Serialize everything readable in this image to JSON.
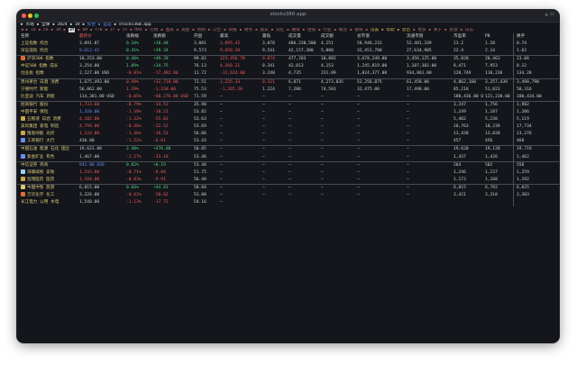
{
  "window": {
    "title": "stocks360.app",
    "right_label": "▲ 30"
  },
  "terminal": {
    "line1_prompt": "▶ 市场 ▪ 全球 ▪ 2024 ▪ 1H ▪",
    "line1_accent": "综合 ▪ 自选",
    "line1_rest": "▪ stocks360.app",
    "line2_pre": "◀ ▶ 1D ▪ 5D ▪ 1M ▪",
    "line2_highlight": "3M",
    "line2_mid": "▪ 6M ▪ YTD ▪ 1Y ▪ 5Y ▪ MAX ▪ 行情 ▪ 图表 ▪ 资金 ▪ 新闻 ▪ 公告 ▪ 研报 ▪ 财务 ▪ 股东 ▪ 分红 ▪ 融资 ▪ 估值 ▪ 行业 ▪ 概念 ▪ 板块 ▪",
    "line2_y": "设置 ▪ 帮助 ▪ 退出",
    "line2_tail": "▪ 更多 ▪ 关于 ▪ 反馈 ▪ 日志"
  },
  "table": {
    "headers": [
      "名称",
      "最新价",
      "涨跌幅",
      "涨跌额",
      "开盘",
      "最高",
      "最低",
      "成交量",
      "成交额",
      "总市值",
      "流通市值",
      "市盈率",
      "PB",
      "换手"
    ],
    "rows": [
      {
        "name": "上证指数 综合",
        "c": [
          "3,091.87",
          "0.34%",
          "+10.48",
          "3,081",
          "3,095.42",
          "3,078",
          "486,230,500",
          "4,251",
          "58,946,231",
          "52,481,339",
          "13.2",
          "1.28",
          "0.74"
        ],
        "cls": [
          "",
          "up",
          "up",
          "",
          "down",
          "",
          "",
          "",
          "",
          "",
          "",
          "",
          ""
        ],
        "icon": "",
        "sep": false
      },
      {
        "name": "深证成指 综合",
        "c": [
          "9,612.43",
          "0.41%",
          "+39.34",
          "9,573",
          "9,658.20",
          "9,541",
          "42,157,300",
          "5,008",
          "32,451,780",
          "27,634,905",
          "22.4",
          "2.14",
          "1.62"
        ],
        "cls": [
          "blue",
          "up",
          "up",
          "",
          "down",
          "",
          "",
          "",
          "",
          "",
          "",
          "",
          ""
        ],
        "icon": "",
        "sep": false
      },
      {
        "name": "沪深300 指数",
        "c": [
          "10,253.00",
          "0.46%",
          "+49.28",
          "99.82",
          "123,456.78",
          "9.874",
          "477,283",
          "10,892",
          "3,678,249.00",
          "3,456,125.00",
          "35,820",
          "20,463",
          "23.06"
        ],
        "cls": [
          "",
          "up",
          "up",
          "",
          "down",
          "down",
          "",
          "",
          "",
          "",
          "",
          "",
          ""
        ],
        "icon": "#e06c3a",
        "sep": true
      },
      {
        "name": "中证500 指数 成长",
        "c": [
          "3,254.00",
          "1.09%",
          "+34.75",
          "76.13",
          "4,566.21",
          "0.341",
          "42,013",
          "4,153",
          "1,245,819.00",
          "1,187,302.00",
          "8,471",
          "7,953",
          "8.12"
        ],
        "cls": [
          "",
          "up",
          "up",
          "",
          "down",
          "",
          "",
          "",
          "",
          "",
          "",
          "",
          ""
        ],
        "icon": "",
        "sep": false
      },
      {
        "name": "创业板 指数",
        "c": [
          "2,127.00 USD",
          "-0.81%",
          "-17,482.00",
          "11.72",
          "-11,624.00",
          "3.248",
          "4,735",
          "231.09",
          "1,024,377.00",
          "934,861.00",
          "128,749",
          "118,236",
          "134.28"
        ],
        "cls": [
          "",
          "down",
          "down",
          "",
          "down",
          "",
          "",
          "",
          "",
          "",
          "",
          "",
          ""
        ],
        "icon": "",
        "sep": false
      },
      {
        "name": "贵州茅台 白酒 消费",
        "c": [
          "1,675,493.00",
          "0.49%",
          "+32,718.00",
          "72.51",
          "1,235.33",
          "0.321",
          "6,871",
          "4,273,835",
          "52,256,075",
          "61,458.00",
          "4,862,160",
          "3,257,439",
          "3,498,790"
        ],
        "cls": [
          "",
          "down",
          "down",
          "",
          "down",
          "down",
          "",
          "",
          "",
          "",
          "",
          "",
          ""
        ],
        "icon": "",
        "sep": true
      },
      {
        "name": "宁德时代 新能",
        "c": [
          "56,862.00",
          "1.29%",
          "-1,230.00",
          "75.53",
          "-1,265.20",
          "1.224",
          "7,286",
          "74,583",
          "32,475.00",
          "17,498.00",
          "85,218",
          "51,823",
          "50,316"
        ],
        "cls": [
          "",
          "down",
          "down",
          "",
          "down",
          "",
          "",
          "",
          "",
          "",
          "",
          "",
          ""
        ],
        "icon": "",
        "sep": false
      },
      {
        "name": "比亚迪 汽车 新能",
        "c": [
          "114,381.00 USD",
          "-0.05%",
          "-68,276.00 USD",
          "71.59",
          "–",
          "–",
          "–",
          "–",
          "–",
          "–",
          "180,436.00 USD",
          "121,238.00",
          "180,434.00"
        ],
        "cls": [
          "",
          "down",
          "down",
          "",
          "",
          "",
          "",
          "",
          "",
          "",
          "",
          "",
          ""
        ],
        "icon": "",
        "sep": false
      },
      {
        "name": "招商银行 股份",
        "c": [
          "1,733.60",
          "-0.79%",
          "-14.53",
          "35.90",
          "–",
          "–",
          "–",
          "–",
          "–",
          "–",
          "3,247",
          "1,756",
          "1,982"
        ],
        "cls": [
          "down",
          "down",
          "down",
          "",
          "",
          "",
          "",
          "",
          "",
          "",
          "",
          "",
          ""
        ],
        "icon": "",
        "sep": true
      },
      {
        "name": "中国平安 保险",
        "c": [
          "1,320.00",
          "-1.38%",
          "-18.21",
          "53.82",
          "–",
          "–",
          "–",
          "–",
          "–",
          "–",
          "1,249",
          "1,187",
          "1,206"
        ],
        "cls": [
          "blue",
          "down",
          "down",
          "",
          "",
          "",
          "",
          "",
          "",
          "",
          "",
          "",
          ""
        ],
        "icon": "",
        "sep": false
      },
      {
        "name": "五粮液 白酒 消费",
        "c": [
          "4,182.00",
          "-1.32%",
          "-55.03",
          "53.63",
          "–",
          "–",
          "–",
          "–",
          "–",
          "–",
          "5,402",
          "5,238",
          "5,119"
        ],
        "cls": [
          "down",
          "down",
          "down",
          "",
          "",
          "",
          "",
          "",
          "",
          "",
          "",
          "",
          ""
        ],
        "icon": "#caa54a",
        "sep": false
      },
      {
        "name": "美的集团 家电 制造",
        "c": [
          "4,794.00",
          "-0.46%",
          "-22.52",
          "53.69",
          "–",
          "–",
          "–",
          "–",
          "–",
          "–",
          "18,763",
          "10,239",
          "17,734"
        ],
        "cls": [
          "down",
          "down",
          "down",
          "",
          "",
          "",
          "",
          "",
          "",
          "",
          "",
          "",
          ""
        ],
        "icon": "",
        "sep": false
      },
      {
        "name": "隆基绿能 光伏",
        "c": [
          "1,133.00",
          "-1.46%",
          "-16.51",
          "56.06",
          "–",
          "–",
          "–",
          "–",
          "–",
          "–",
          "13,420",
          "13,028",
          "13,276"
        ],
        "cls": [
          "down",
          "down",
          "down",
          "",
          "",
          "",
          "",
          "",
          "",
          "",
          "",
          "",
          ""
        ],
        "icon": "#caa54a",
        "sep": false
      },
      {
        "name": "工商银行 大行",
        "c": [
          "430.00",
          "-1.52%",
          "-6.61",
          "53.43",
          "–",
          "–",
          "–",
          "–",
          "–",
          "–",
          "457",
          "456",
          "468"
        ],
        "cls": [
          "",
          "down",
          "down",
          "",
          "",
          "",
          "",
          "",
          "",
          "",
          "",
          "",
          ""
        ],
        "icon": "#6f8cff",
        "sep": false
      },
      {
        "name": "中国石油 能源 石化 国企",
        "c": [
          "19,621.00",
          "2.40%",
          "+470.00",
          "50.85",
          "–",
          "–",
          "–",
          "–",
          "–",
          "–",
          "19,620",
          "19,128",
          "19,719"
        ],
        "cls": [
          "",
          "up",
          "up",
          "",
          "",
          "",
          "",
          "",
          "",
          "",
          "",
          "",
          ""
        ],
        "icon": "",
        "sep": true
      },
      {
        "name": "紫金矿业 有色",
        "c": [
          "1,467.00",
          "-2.27%",
          "-33.18",
          "53.46",
          "–",
          "–",
          "–",
          "–",
          "–",
          "–",
          "1,437",
          "1,426",
          "1,462"
        ],
        "cls": [
          "",
          "down",
          "down",
          "",
          "",
          "",
          "",
          "",
          "",
          "",
          "",
          "",
          ""
        ],
        "icon": "#6f8cff",
        "sep": false
      },
      {
        "name": "中信证券 券商",
        "c": [
          "942.00 USD",
          "0.02%",
          "+0.19",
          "53.40",
          "–",
          "–",
          "–",
          "–",
          "–",
          "–",
          "264",
          "502",
          "558"
        ],
        "cls": [
          "blue",
          "up",
          "up",
          "",
          "",
          "",
          "",
          "",
          "",
          "",
          "",
          "",
          ""
        ],
        "icon": "",
        "sep": true
      },
      {
        "name": "海康威视 安防",
        "c": [
          "1,243.00",
          "-0.71%",
          "-8.84",
          "51.75",
          "–",
          "–",
          "–",
          "–",
          "–",
          "–",
          "1,246",
          "1,237",
          "1,259"
        ],
        "cls": [
          "down",
          "down",
          "down",
          "",
          "",
          "",
          "",
          "",
          "",
          "",
          "",
          "",
          ""
        ],
        "icon": "#9ad0ff",
        "sep": false
      },
      {
        "name": "恒瑞医药 医药",
        "c": [
          "1,184.00",
          "-0.83%",
          "-9.91",
          "56.40",
          "–",
          "–",
          "–",
          "–",
          "–",
          "–",
          "1,173",
          "1,168",
          "1,192"
        ],
        "cls": [
          "down",
          "down",
          "down",
          "",
          "",
          "",
          "",
          "",
          "",
          "",
          "",
          "",
          ""
        ],
        "icon": "#caa54a",
        "sep": false
      },
      {
        "name": "中国中免 旅游",
        "c": [
          "6,815.00",
          "0.66%",
          "+44.81",
          "58.84",
          "–",
          "–",
          "–",
          "–",
          "–",
          "–",
          "6,815",
          "6,792",
          "6,825"
        ],
        "cls": [
          "",
          "up",
          "up",
          "",
          "",
          "",
          "",
          "",
          "",
          "",
          "",
          "",
          ""
        ],
        "icon": "#d8c978",
        "sep": true
      },
      {
        "name": "万华化学 化工",
        "c": [
          "3,326.00",
          "-0.62%",
          "-20.62",
          "53.80",
          "–",
          "–",
          "–",
          "–",
          "–",
          "–",
          "3,421",
          "3,310",
          "3,303"
        ],
        "cls": [
          "",
          "down",
          "down",
          "",
          "",
          "",
          "",
          "",
          "",
          "",
          "",
          "",
          ""
        ],
        "icon": "#e06c3a",
        "sep": false
      },
      {
        "name": "长江电力 公用 水电",
        "c": [
          "1,548.00",
          "-1.13%",
          "-17.72",
          "54.16",
          "–",
          "",
          "",
          "",
          "",
          "",
          "",
          "",
          ""
        ],
        "cls": [
          "",
          "down",
          "down",
          "",
          "",
          "",
          "",
          "",
          "",
          "",
          "",
          "",
          ""
        ],
        "icon": "",
        "sep": false
      }
    ]
  }
}
